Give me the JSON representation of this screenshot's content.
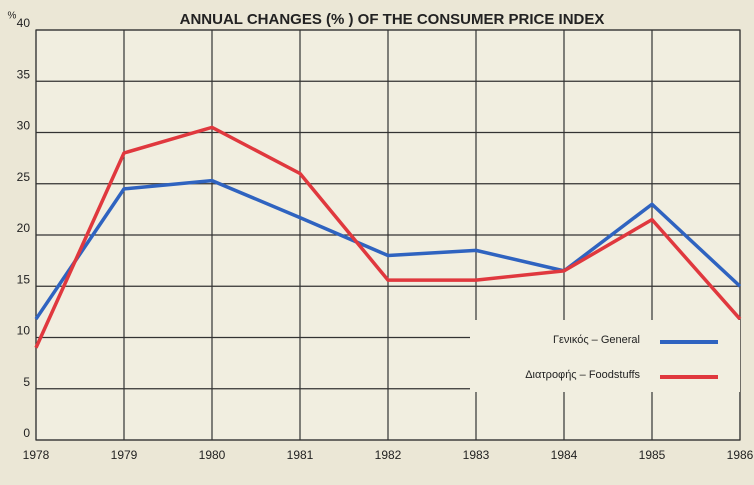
{
  "chart_data": {
    "type": "line",
    "title": "ANNUAL CHANGES (% ) OF THE CONSUMER PRICE INDEX",
    "y_label": "%",
    "x": [
      1978,
      1979,
      1980,
      1981,
      1982,
      1983,
      1984,
      1985,
      1986
    ],
    "series": [
      {
        "name": "Γενικός – General",
        "color": "#2f63c0",
        "values": [
          11.8,
          24.5,
          25.3,
          21.7,
          18,
          18.5,
          16.5,
          23,
          15
        ]
      },
      {
        "name": "Διατροφής – Foodstuffs",
        "color": "#e0383e",
        "values": [
          9,
          28,
          30.5,
          26,
          15.6,
          15.6,
          16.5,
          21.5,
          11.8
        ]
      }
    ],
    "xlim": [
      1978,
      1986
    ],
    "xticks": [
      1978,
      1979,
      1980,
      1981,
      1982,
      1983,
      1984,
      1985,
      1986
    ],
    "ylim": [
      0,
      40
    ],
    "yticks": [
      0,
      5,
      10,
      15,
      20,
      25,
      30,
      35,
      40
    ],
    "grid": true,
    "legend": "lower right"
  }
}
